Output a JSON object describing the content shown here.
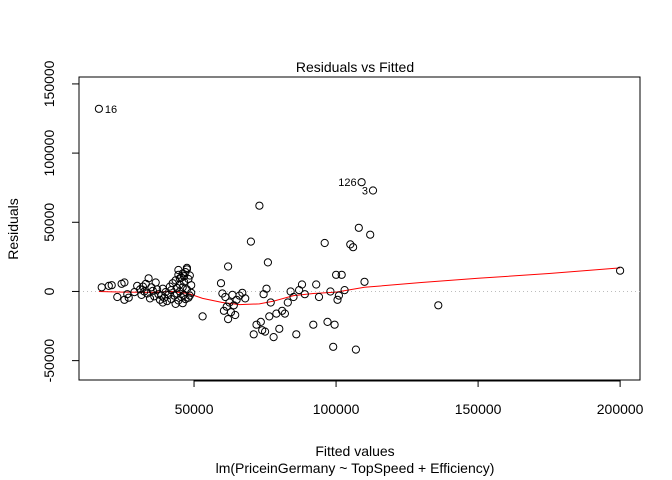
{
  "chart_data": {
    "type": "scatter",
    "title": "Residuals vs Fitted",
    "xlabel": "Fitted values",
    "ylabel": "Residuals",
    "subtitle": "lm(PriceinGermany ~ TopSpeed + Efficiency)",
    "xlim": [
      9500,
      207000
    ],
    "ylim": [
      -64000,
      155000
    ],
    "xticks": [
      50000,
      100000,
      150000,
      200000
    ],
    "xtick_labels": [
      "50000",
      "100000",
      "150000",
      "200000"
    ],
    "yticks": [
      -50000,
      0,
      50000,
      100000,
      150000
    ],
    "ytick_labels": [
      "-50000",
      "0",
      "50000",
      "100000",
      "150000"
    ],
    "grid": false,
    "reference_line": {
      "y": 0,
      "color": "#bdbdbd",
      "style": "dotted"
    },
    "colors": {
      "points": "#000000",
      "smoother": "#ff0000"
    },
    "annotations": [
      {
        "label": "16",
        "x": 16500,
        "y": 132000
      },
      {
        "label": "126",
        "x": 109000,
        "y": 79000
      },
      {
        "label": "3",
        "x": 113000,
        "y": 73000
      }
    ],
    "smoother": {
      "x": [
        16500,
        25000,
        35000,
        42000,
        48000,
        53000,
        60000,
        66000,
        73000,
        78000,
        85000,
        92000,
        100000,
        110000,
        130000,
        150000,
        175000,
        200000
      ],
      "y": [
        0,
        -500,
        -700,
        0,
        -1500,
        -5000,
        -8000,
        -9500,
        -9000,
        -7000,
        -3000,
        -1500,
        -500,
        3000,
        6500,
        9500,
        13000,
        17000
      ]
    },
    "points": [
      [
        16500,
        132000
      ],
      [
        109000,
        79000
      ],
      [
        113000,
        73000
      ],
      [
        17500,
        3000
      ],
      [
        20000,
        4000
      ],
      [
        21000,
        4500
      ],
      [
        23000,
        -4000
      ],
      [
        24500,
        5500
      ],
      [
        25500,
        6500
      ],
      [
        26500,
        -2000
      ],
      [
        27000,
        -4500
      ],
      [
        25500,
        -6000
      ],
      [
        29000,
        -500
      ],
      [
        30000,
        4000
      ],
      [
        31000,
        1500
      ],
      [
        31500,
        -2500
      ],
      [
        32000,
        3500
      ],
      [
        32500,
        0
      ],
      [
        33000,
        5500
      ],
      [
        33500,
        -1500
      ],
      [
        34000,
        9500
      ],
      [
        34500,
        -5000
      ],
      [
        35000,
        3000
      ],
      [
        35500,
        500
      ],
      [
        36000,
        -3500
      ],
      [
        36500,
        6500
      ],
      [
        37000,
        1500
      ],
      [
        37500,
        -2000
      ],
      [
        38000,
        -6000
      ],
      [
        38500,
        -3000
      ],
      [
        39000,
        2000
      ],
      [
        39000,
        -8000
      ],
      [
        39500,
        -4500
      ],
      [
        40000,
        -500
      ],
      [
        40500,
        -7000
      ],
      [
        41000,
        -2500
      ],
      [
        41500,
        3500
      ],
      [
        42000,
        -5500
      ],
      [
        42000,
        1000
      ],
      [
        42500,
        6000
      ],
      [
        43000,
        -3000
      ],
      [
        43500,
        8000
      ],
      [
        43500,
        -9000
      ],
      [
        44000,
        2500
      ],
      [
        44000,
        -1500
      ],
      [
        44500,
        12000
      ],
      [
        44500,
        -6500
      ],
      [
        45000,
        5000
      ],
      [
        45000,
        0
      ],
      [
        45500,
        -4000
      ],
      [
        45500,
        10000
      ],
      [
        46000,
        3000
      ],
      [
        46000,
        -8500
      ],
      [
        46500,
        7000
      ],
      [
        46500,
        -2500
      ],
      [
        47000,
        14000
      ],
      [
        47000,
        -5500
      ],
      [
        47500,
        1500
      ],
      [
        47500,
        17000
      ],
      [
        48000,
        -4500
      ],
      [
        48000,
        9000
      ],
      [
        48500,
        -3000
      ],
      [
        48500,
        11500
      ],
      [
        49000,
        4500
      ],
      [
        49000,
        -1000
      ],
      [
        44500,
        15500
      ],
      [
        46000,
        13000
      ],
      [
        47500,
        16000
      ],
      [
        45000,
        9500
      ],
      [
        46500,
        11000
      ],
      [
        53000,
        -18000
      ],
      [
        59500,
        6000
      ],
      [
        60000,
        -1500
      ],
      [
        60500,
        -14000
      ],
      [
        61000,
        -4000
      ],
      [
        61500,
        -11000
      ],
      [
        62000,
        18000
      ],
      [
        62000,
        -20000
      ],
      [
        62500,
        -8000
      ],
      [
        63000,
        -15000
      ],
      [
        63500,
        -2500
      ],
      [
        64000,
        -10000
      ],
      [
        64500,
        -17000
      ],
      [
        65000,
        -6000
      ],
      [
        66000,
        -3000
      ],
      [
        67000,
        -1000
      ],
      [
        68000,
        -5000
      ],
      [
        70000,
        36000
      ],
      [
        71000,
        -31000
      ],
      [
        72000,
        -24000
      ],
      [
        73000,
        62000
      ],
      [
        73500,
        -22000
      ],
      [
        74000,
        -28000
      ],
      [
        74500,
        -2000
      ],
      [
        75000,
        -29000
      ],
      [
        75500,
        2000
      ],
      [
        76000,
        21000
      ],
      [
        76500,
        -18000
      ],
      [
        77000,
        -8000
      ],
      [
        78000,
        -33000
      ],
      [
        79000,
        -16000
      ],
      [
        80000,
        -27000
      ],
      [
        81000,
        -14000
      ],
      [
        82000,
        -16000
      ],
      [
        83000,
        -8000
      ],
      [
        84000,
        0
      ],
      [
        85000,
        -4000
      ],
      [
        86000,
        -31000
      ],
      [
        87000,
        1000
      ],
      [
        88000,
        5000
      ],
      [
        89000,
        -2000
      ],
      [
        92000,
        -24000
      ],
      [
        93000,
        5000
      ],
      [
        94000,
        -4000
      ],
      [
        96000,
        35000
      ],
      [
        97000,
        -22000
      ],
      [
        98000,
        0
      ],
      [
        99000,
        -40000
      ],
      [
        99500,
        -24000
      ],
      [
        100000,
        12000
      ],
      [
        100500,
        -6000
      ],
      [
        101000,
        -3000
      ],
      [
        102000,
        12000
      ],
      [
        103000,
        1000
      ],
      [
        105000,
        34000
      ],
      [
        106000,
        32000
      ],
      [
        107000,
        -42000
      ],
      [
        108000,
        46000
      ],
      [
        110000,
        7000
      ],
      [
        112000,
        41000
      ],
      [
        136000,
        -10000
      ],
      [
        200000,
        15000
      ]
    ]
  }
}
